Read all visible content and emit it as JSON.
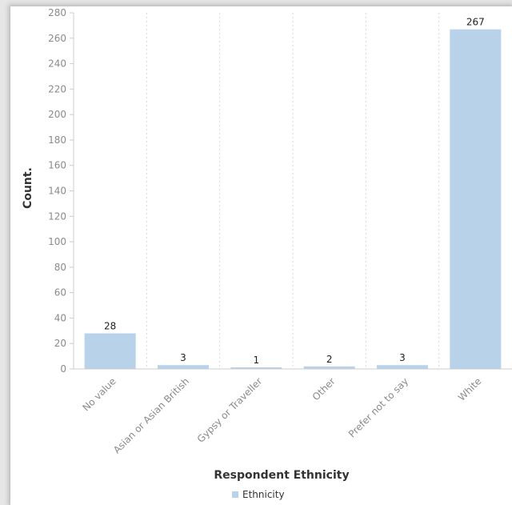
{
  "chart_data": {
    "type": "bar",
    "categories": [
      "No value",
      "Asian or Asian British",
      "Gypsy or Traveller",
      "Other",
      "Prefer not to say",
      "White"
    ],
    "series": [
      {
        "name": "Ethnicity",
        "values": [
          28,
          3,
          1,
          2,
          3,
          267
        ]
      }
    ],
    "xlabel": "Respondent Ethnicity",
    "ylabel": "Count.",
    "ylim": [
      0,
      280
    ],
    "yticks": [
      0,
      20,
      40,
      60,
      80,
      100,
      120,
      140,
      160,
      180,
      200,
      220,
      240,
      260,
      280
    ],
    "grid": "vertical dotted",
    "legend_position": "bottom-center",
    "colors": {
      "bar": "#b8d2ea",
      "grid": "#d8d8d8",
      "axis": "#cccccc"
    }
  }
}
